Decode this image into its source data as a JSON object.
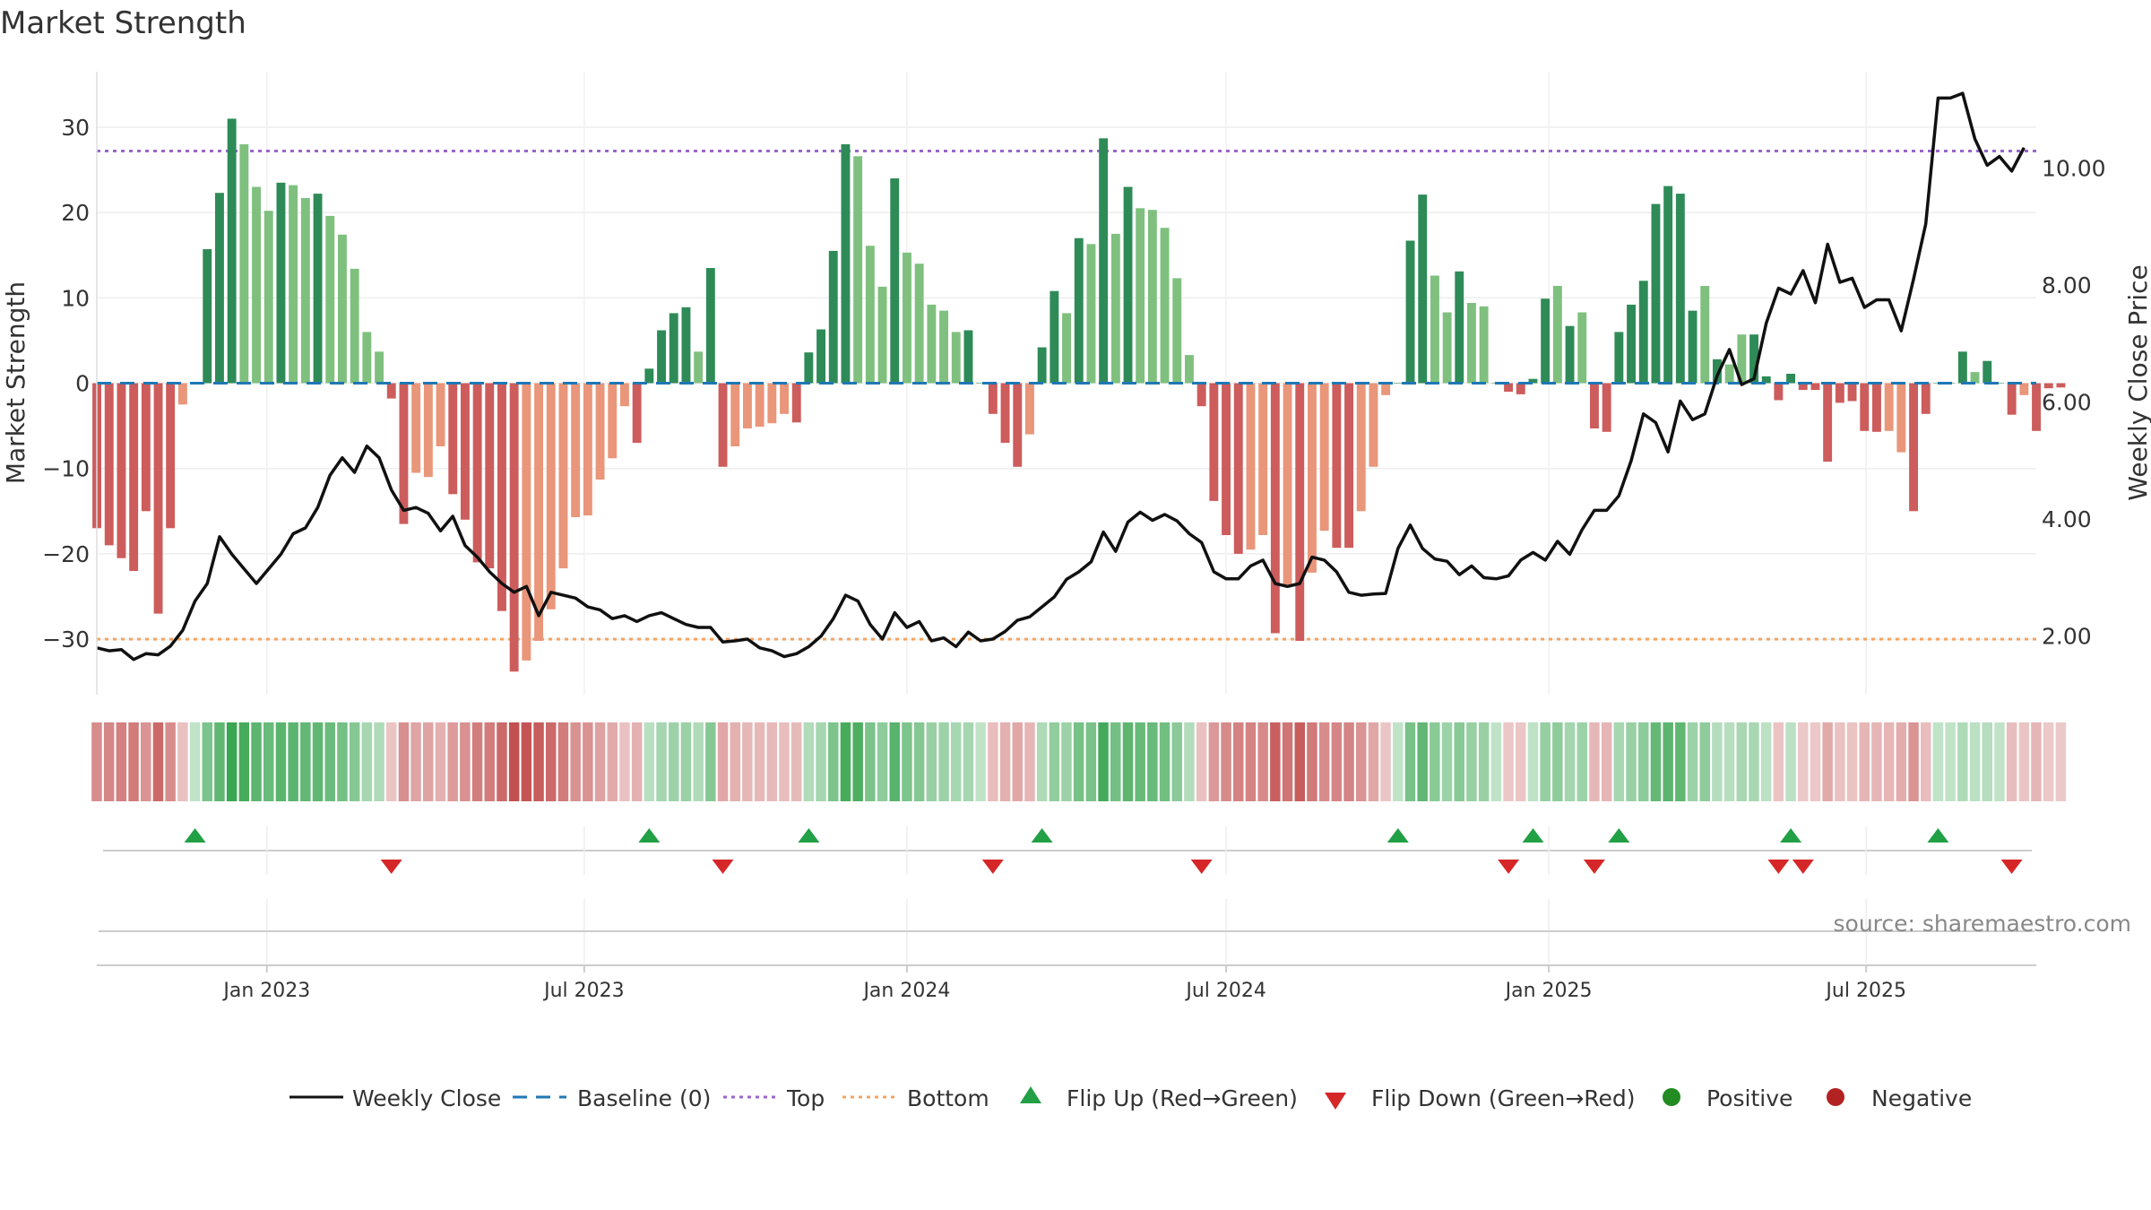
{
  "chart_data": {
    "type": "bar",
    "title": "Market Strength",
    "ylabel_left": "Market Strength",
    "ylabel_right": "Weekly Close Price",
    "source": "source: sharemaestro.com",
    "xlim": [
      "2022-09-26",
      "2025-10-06"
    ],
    "ylim_left": [
      -36.5,
      36.5
    ],
    "ylim_right": [
      1.0,
      11.65
    ],
    "yticks_left": [
      -30,
      -20,
      -10,
      0,
      10,
      20,
      30
    ],
    "ytick_labels_left": [
      "−30",
      "−20",
      "−10",
      "0",
      "10",
      "20",
      "30"
    ],
    "yticks_right": [
      2,
      4,
      6,
      8,
      10
    ],
    "ytick_labels_right": [
      "2.00",
      "4.00",
      "6.00",
      "8.00",
      "10.00"
    ],
    "xticks": [
      "2023-01-01",
      "2023-07-01",
      "2024-01-01",
      "2024-07-01",
      "2025-01-01",
      "2025-07-01"
    ],
    "xtick_labels": [
      "Jan 2023",
      "Jul 2023",
      "Jan 2024",
      "Jul 2024",
      "Jan 2025",
      "Jul 2025"
    ],
    "start_week": "2022-09-26",
    "top_level": 27.2,
    "bottom_level": -30,
    "colors": {
      "green_strong": "#2e8b57",
      "green_light": "#7fc07f",
      "red_strong": "#cd5c5c",
      "red_light": "#e9967a",
      "top_line": "#9966cc",
      "bottom_line": "#f4a460",
      "baseline": "#1f77b4",
      "close_line": "#111111",
      "flip_up": "#22a045",
      "flip_down": "#d62728",
      "positive": "#228b22",
      "negative": "#b22222"
    },
    "strength": [
      -17,
      -19,
      -20.5,
      -22,
      -15,
      -27,
      -17,
      -2.5,
      0,
      15.7,
      22.3,
      31,
      28,
      23,
      20.2,
      23.5,
      23.2,
      21.7,
      22.2,
      19.6,
      17.4,
      13.4,
      6,
      3.7,
      -1.8,
      -16.5,
      -10.5,
      -11,
      -7.4,
      -13,
      -16,
      -21,
      -21.7,
      -26.7,
      -33.8,
      -32.5,
      -30.2,
      -26.5,
      -21.7,
      -15.7,
      -15.5,
      -11.3,
      -8.8,
      -2.7,
      -7,
      1.7,
      6.2,
      8.2,
      8.9,
      3.7,
      13.5,
      -9.8,
      -7.4,
      -5.3,
      -5.1,
      -4.7,
      -3.6,
      -4.6,
      3.6,
      6.3,
      15.5,
      28,
      26.6,
      16.1,
      11.3,
      24,
      15.3,
      14,
      9.2,
      8.5,
      6,
      6.2,
      0,
      -3.6,
      -7,
      -9.8,
      -6,
      4.2,
      10.8,
      8.2,
      17,
      16.3,
      28.7,
      17.5,
      23,
      20.5,
      20.3,
      18.2,
      12.3,
      3.3,
      -2.7,
      -13.8,
      -17.8,
      -20,
      -19.5,
      -17.8,
      -29.3,
      -23.7,
      -30.2,
      -22.2,
      -17.3,
      -19.3,
      -19.3,
      -15,
      -9.8,
      -1.4,
      0,
      16.7,
      22.1,
      12.6,
      8.3,
      13.1,
      9.4,
      9,
      0,
      -1,
      -1.3,
      0.5,
      9.9,
      11.4,
      6.7,
      8.3,
      -5.3,
      -5.7,
      6,
      9.2,
      12,
      21,
      23.1,
      22.2,
      8.5,
      11.4,
      2.8,
      2.2,
      5.7,
      5.7,
      0.8,
      -2,
      1.1,
      -0.8,
      -0.8,
      -9.2,
      -2.3,
      -2.1,
      -5.6,
      -5.7,
      -5.6,
      -8.1,
      -15,
      -3.6,
      0,
      0,
      3.7,
      1.3,
      2.6,
      0,
      -3.7,
      -1.4,
      -5.6,
      -0.6,
      -0.5
    ],
    "strength_shade": [
      "s",
      "s",
      "s",
      "s",
      "s",
      "s",
      "s",
      "l",
      "s",
      "s",
      "s",
      "s",
      "l",
      "l",
      "l",
      "s",
      "l",
      "l",
      "s",
      "l",
      "l",
      "l",
      "l",
      "l",
      "s",
      "s",
      "l",
      "l",
      "l",
      "s",
      "s",
      "s",
      "s",
      "s",
      "s",
      "l",
      "l",
      "l",
      "l",
      "l",
      "l",
      "l",
      "l",
      "l",
      "s",
      "s",
      "s",
      "s",
      "s",
      "l",
      "s",
      "s",
      "l",
      "l",
      "l",
      "l",
      "l",
      "s",
      "s",
      "s",
      "s",
      "s",
      "l",
      "l",
      "l",
      "s",
      "l",
      "l",
      "l",
      "l",
      "l",
      "s",
      "s",
      "s",
      "s",
      "s",
      "l",
      "s",
      "s",
      "l",
      "s",
      "l",
      "s",
      "l",
      "s",
      "l",
      "l",
      "l",
      "l",
      "l",
      "s",
      "s",
      "s",
      "s",
      "l",
      "l",
      "s",
      "l",
      "s",
      "l",
      "l",
      "s",
      "s",
      "l",
      "l",
      "l",
      "s",
      "s",
      "s",
      "l",
      "l",
      "s",
      "l",
      "l",
      "s",
      "s",
      "s",
      "s",
      "s",
      "l",
      "s",
      "l",
      "s",
      "s",
      "s",
      "s",
      "s",
      "s",
      "s",
      "s",
      "s",
      "l",
      "s",
      "l",
      "l",
      "s",
      "s",
      "s",
      "s",
      "s",
      "s",
      "s",
      "s",
      "s",
      "s",
      "s",
      "l",
      "l",
      "s",
      "s",
      "s",
      "s",
      "s",
      "l",
      "s",
      "s",
      "s",
      "l",
      "s",
      "s",
      "s",
      "s",
      "s",
      "s",
      "s",
      "l"
    ],
    "weekly_close": [
      1.8,
      1.75,
      1.77,
      1.6,
      1.7,
      1.68,
      1.83,
      2.1,
      2.6,
      2.9,
      3.7,
      3.4,
      3.15,
      2.9,
      3.15,
      3.4,
      3.75,
      3.85,
      4.2,
      4.75,
      5.05,
      4.8,
      5.25,
      5.05,
      4.5,
      4.15,
      4.2,
      4.1,
      3.8,
      4.05,
      3.55,
      3.35,
      3.1,
      2.9,
      2.75,
      2.85,
      2.35,
      2.75,
      2.7,
      2.65,
      2.5,
      2.45,
      2.3,
      2.35,
      2.25,
      2.35,
      2.4,
      2.3,
      2.2,
      2.15,
      2.15,
      1.9,
      1.92,
      1.95,
      1.8,
      1.75,
      1.65,
      1.7,
      1.82,
      2.0,
      2.3,
      2.7,
      2.6,
      2.2,
      1.95,
      2.4,
      2.15,
      2.25,
      1.92,
      1.97,
      1.82,
      2.07,
      1.92,
      1.95,
      2.08,
      2.27,
      2.33,
      2.5,
      2.67,
      2.97,
      3.1,
      3.27,
      3.78,
      3.45,
      3.95,
      4.12,
      3.98,
      4.08,
      3.97,
      3.75,
      3.6,
      3.1,
      2.98,
      2.98,
      3.2,
      3.3,
      2.9,
      2.85,
      2.9,
      3.35,
      3.3,
      3.1,
      2.75,
      2.7,
      2.72,
      2.73,
      3.5,
      3.9,
      3.5,
      3.32,
      3.28,
      3.05,
      3.2,
      3.0,
      2.98,
      3.03,
      3.3,
      3.43,
      3.3,
      3.62,
      3.4,
      3.82,
      4.15,
      4.15,
      4.4,
      5.0,
      5.8,
      5.65,
      5.15,
      6.02,
      5.7,
      5.8,
      6.45,
      6.9,
      6.3,
      6.4,
      7.35,
      7.95,
      7.85,
      8.25,
      7.7,
      8.7,
      8.05,
      8.12,
      7.62,
      7.75,
      7.75,
      7.22,
      8.1,
      9.05,
      11.2,
      11.2,
      11.28,
      10.5,
      10.05,
      10.2,
      9.95,
      10.35
    ]
  },
  "legend": {
    "weekly_close": "Weekly Close",
    "baseline": "Baseline (0)",
    "top": "Top",
    "bottom": "Bottom",
    "flip_up": "Flip Up (Red→Green)",
    "flip_down": "Flip Down (Green→Red)",
    "positive": "Positive",
    "negative": "Negative"
  },
  "icons": {
    "flip_up": "triangle-up-icon",
    "flip_down": "triangle-down-icon",
    "positive": "green-dot-icon",
    "negative": "red-dot-icon"
  }
}
